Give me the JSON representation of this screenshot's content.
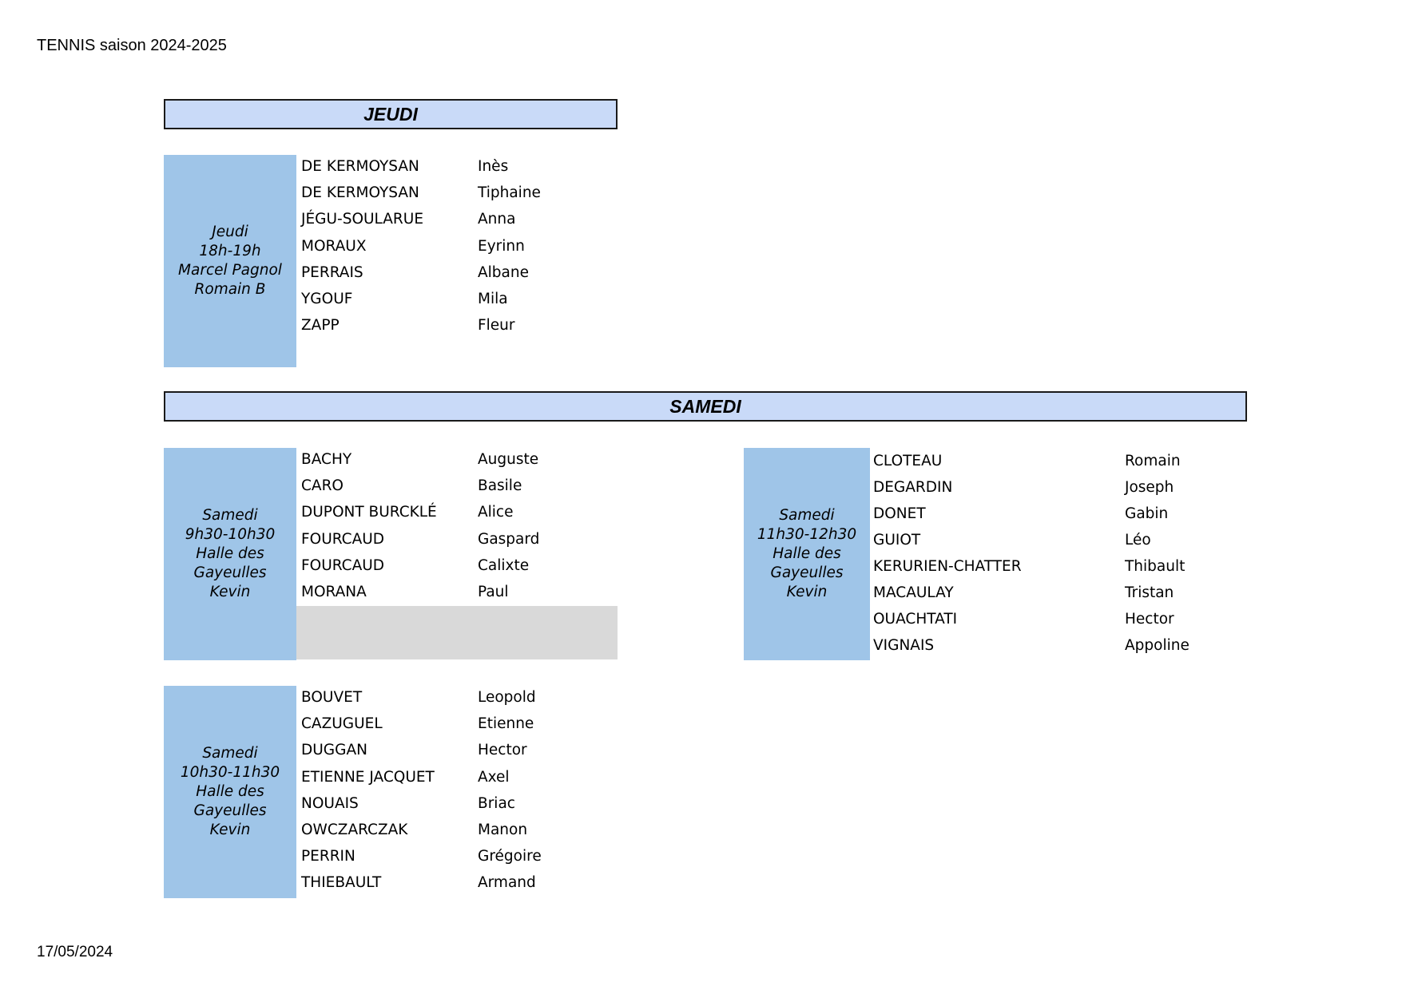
{
  "document": {
    "title": "TENNIS saison 2024-2025",
    "date": "17/05/2024"
  },
  "headers": {
    "jeudi": "JEUDI",
    "samedi": "SAMEDI"
  },
  "colors": {
    "header_fill": "#c9daf8",
    "session_fill": "#9fc5e8",
    "empty_fill": "#d9d9d9"
  },
  "sessions": {
    "jeudi": {
      "label": [
        "Jeudi",
        "18h-19h",
        "Marcel Pagnol",
        "Romain B"
      ],
      "players": [
        {
          "last": "DE KERMOYSAN",
          "first": "Inès"
        },
        {
          "last": "DE KERMOYSAN",
          "first": "Tiphaine"
        },
        {
          "last": "JÉGU-SOULARUE",
          "first": "Anna"
        },
        {
          "last": "MORAUX",
          "first": "Eyrinn"
        },
        {
          "last": "PERRAIS",
          "first": "Albane"
        },
        {
          "last": "YGOUF",
          "first": "Mila"
        },
        {
          "last": "ZAPP",
          "first": "Fleur"
        }
      ]
    },
    "samedi_a": {
      "label": [
        "Samedi",
        "9h30-10h30",
        "Halle des",
        "Gayeulles",
        "Kevin"
      ],
      "players": [
        {
          "last": "BACHY",
          "first": "Auguste"
        },
        {
          "last": "CARO",
          "first": "Basile"
        },
        {
          "last": "DUPONT BURCKLÉ",
          "first": "Alice"
        },
        {
          "last": "FOURCAUD",
          "first": "Gaspard"
        },
        {
          "last": "FOURCAUD",
          "first": "Calixte"
        },
        {
          "last": "MORANA",
          "first": "Paul"
        }
      ]
    },
    "samedi_b": {
      "label": [
        "Samedi",
        "11h30-12h30",
        "Halle des",
        "Gayeulles",
        "Kevin"
      ],
      "players": [
        {
          "last": "CLOTEAU",
          "first": "Romain"
        },
        {
          "last": "DEGARDIN",
          "first": "Joseph"
        },
        {
          "last": "DONET",
          "first": "Gabin"
        },
        {
          "last": "GUIOT",
          "first": "Léo"
        },
        {
          "last": "KERURIEN-CHATTER",
          "first": "Thibault"
        },
        {
          "last": "MACAULAY",
          "first": "Tristan"
        },
        {
          "last": "OUACHTATI",
          "first": "Hector"
        },
        {
          "last": "VIGNAIS",
          "first": "Appoline"
        }
      ]
    },
    "samedi_c": {
      "label": [
        "Samedi",
        "10h30-11h30",
        "Halle des",
        "Gayeulles",
        "Kevin"
      ],
      "players": [
        {
          "last": "BOUVET",
          "first": "Leopold"
        },
        {
          "last": "CAZUGUEL",
          "first": "Etienne"
        },
        {
          "last": "DUGGAN",
          "first": "Hector"
        },
        {
          "last": "ETIENNE JACQUET",
          "first": "Axel"
        },
        {
          "last": "NOUAIS",
          "first": "Briac"
        },
        {
          "last": "OWCZARCZAK",
          "first": "Manon"
        },
        {
          "last": "PERRIN",
          "first": "Grégoire"
        },
        {
          "last": "THIEBAULT",
          "first": "Armand"
        }
      ]
    }
  }
}
